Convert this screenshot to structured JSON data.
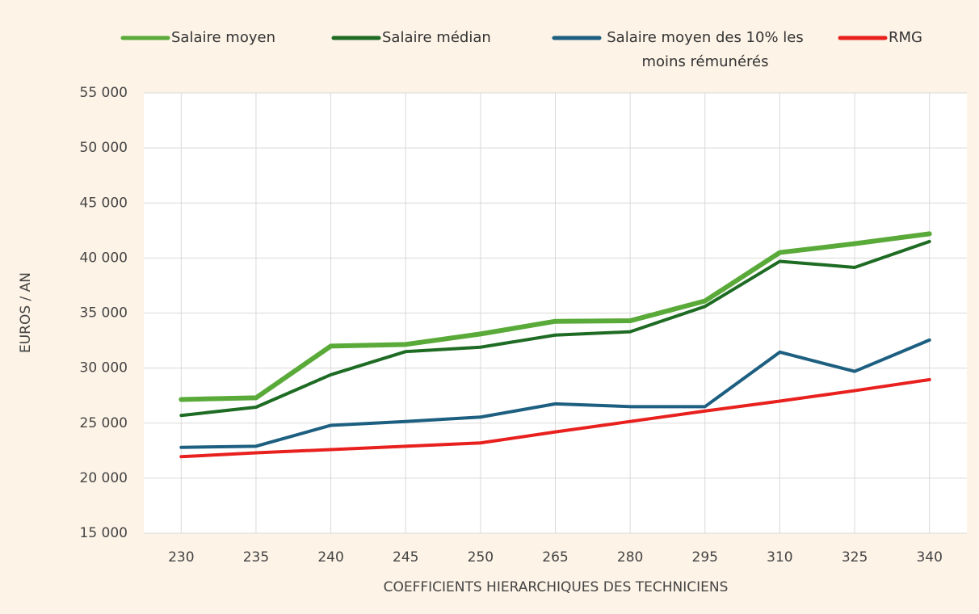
{
  "chart_data": {
    "type": "line",
    "categories": [
      "230",
      "235",
      "240",
      "245",
      "250",
      "265",
      "280",
      "295",
      "310",
      "325",
      "340"
    ],
    "series": [
      {
        "name": "Salaire moyen",
        "color": "#5aaa3a",
        "values": [
          27150,
          27300,
          32000,
          32150,
          33100,
          34250,
          34300,
          36100,
          40500,
          41300,
          42200
        ]
      },
      {
        "name": "Salaire médian",
        "color": "#1e6b23",
        "values": [
          25700,
          26450,
          29400,
          31500,
          31900,
          33000,
          33300,
          35600,
          39700,
          39150,
          41500
        ]
      },
      {
        "name": "Salaire moyen des 10% les moins rémunérés",
        "color": "#1d5f80",
        "values": [
          22800,
          22900,
          24800,
          25150,
          25550,
          26750,
          26500,
          26500,
          31450,
          29700,
          32550
        ]
      },
      {
        "name": "RMG",
        "color": "#e8201e",
        "values": [
          21950,
          22300,
          22600,
          22900,
          23200,
          24200,
          25150,
          26100,
          27000,
          27950,
          28950
        ]
      }
    ],
    "ylabel": "EUROS / AN",
    "xlabel": "COEFFICIENTS HIERARCHIQUES DES TECHNICIENS",
    "ylim": [
      15000,
      55000
    ],
    "yticks": [
      {
        "value": 15000,
        "label": "15 000"
      },
      {
        "value": 20000,
        "label": "20 000"
      },
      {
        "value": 25000,
        "label": "25 000"
      },
      {
        "value": 30000,
        "label": "30 000"
      },
      {
        "value": 35000,
        "label": "35 000"
      },
      {
        "value": 40000,
        "label": "40 000"
      },
      {
        "value": 45000,
        "label": "45 000"
      },
      {
        "value": 50000,
        "label": "50 000"
      },
      {
        "value": 55000,
        "label": "55 000"
      }
    ],
    "grid": true,
    "legend": "top"
  }
}
